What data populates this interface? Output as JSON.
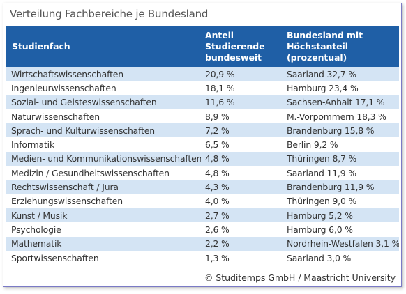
{
  "title": "Verteilung Fachbereiche je Bundesland",
  "table": {
    "headers": {
      "col1": "Studienfach",
      "col2": "Anteil Studierende bundesweit",
      "col3": "Bundesland mit Höchstanteil (prozentual)"
    },
    "rows": [
      {
        "fach": "Wirtschaftswissenschaften",
        "anteil": "20,9 %",
        "bundesland": "Saarland 32,7 %"
      },
      {
        "fach": "Ingenieurwissenschaften",
        "anteil": "18,1 %",
        "bundesland": "Hamburg 23,4 %"
      },
      {
        "fach": "Sozial- und Geisteswissenschaften",
        "anteil": "11,6 %",
        "bundesland": "Sachsen-Anhalt 17,1 %"
      },
      {
        "fach": "Naturwissenschaften",
        "anteil": "8,9 %",
        "bundesland": "M.-Vorpommern 18,3 %"
      },
      {
        "fach": "Sprach- und Kulturwissenschaften",
        "anteil": "7,2 %",
        "bundesland": "Brandenburg 15,8 %"
      },
      {
        "fach": "Informatik",
        "anteil": "6,5 %",
        "bundesland": "Berlin 9,2 %"
      },
      {
        "fach": "Medien- und Kommunikationswissenschaften",
        "anteil": "4,8 %",
        "bundesland": "Thüringen 8,7 %"
      },
      {
        "fach": "Medizin / Gesundheitswissenschaften",
        "anteil": "4,8 %",
        "bundesland": "Saarland 11,9 %"
      },
      {
        "fach": "Rechtswissenschaft / Jura",
        "anteil": "4,3 %",
        "bundesland": "Brandenburg 11,9 %"
      },
      {
        "fach": "Erziehungswissenschaften",
        "anteil": "4,0 %",
        "bundesland": "Thüringen 9,0 %"
      },
      {
        "fach": "Kunst / Musik",
        "anteil": "2,7 %",
        "bundesland": "Hamburg 5,2 %"
      },
      {
        "fach": "Psychologie",
        "anteil": "2,6 %",
        "bundesland": "Hamburg 6,0 %"
      },
      {
        "fach": "Mathematik",
        "anteil": "2,2 %",
        "bundesland": "Nordrhein-Westfalen 3,1 %"
      },
      {
        "fach": "Sportwissenschaften",
        "anteil": "1,3 %",
        "bundesland": "Saarland 3,0 %"
      }
    ]
  },
  "footer": "© Studitemps GmbH / Maastricht University",
  "colors": {
    "header_bg": "#1f5fa6",
    "stripe_bg": "#d4e4f4",
    "border": "#7a7ac6"
  }
}
